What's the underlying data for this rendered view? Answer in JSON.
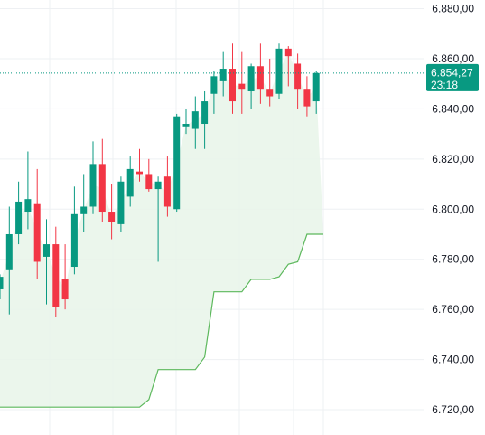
{
  "chart_data": {
    "type": "candlestick",
    "ylim": [
      6712,
      6888
    ],
    "y_ticks": [
      6880,
      6860,
      6840,
      6820,
      6800,
      6780,
      6760,
      6740,
      6720
    ],
    "y_tick_labels": [
      "6.880,00",
      "6.860,00",
      "6.840,00",
      "6.820,00",
      "6.800,00",
      "6.780,00",
      "6.760,00",
      "6.740,00",
      "6.720,00"
    ],
    "grid": true,
    "current_price": 6854.27,
    "current_price_label": "6.854,27",
    "countdown_label": "23:18",
    "colors": {
      "up": "#089981",
      "down": "#f23645",
      "stop_line": "#5cb85c",
      "fill": "#e8f5e9",
      "price_line": "#089981",
      "grid": "#eef0f3",
      "axis_text": "#131722"
    },
    "candles": [
      {
        "o": 6768,
        "h": 6774,
        "l": 6764,
        "c": 6773
      },
      {
        "o": 6776,
        "h": 6801,
        "l": 6758,
        "c": 6790
      },
      {
        "o": 6790,
        "h": 6811,
        "l": 6786,
        "c": 6803
      },
      {
        "o": 6799,
        "h": 6823,
        "l": 6792,
        "c": 6804
      },
      {
        "o": 6802,
        "h": 6816,
        "l": 6772,
        "c": 6779
      },
      {
        "o": 6781,
        "h": 6796,
        "l": 6762,
        "c": 6786
      },
      {
        "o": 6786,
        "h": 6793,
        "l": 6757,
        "c": 6761
      },
      {
        "o": 6772,
        "h": 6786,
        "l": 6760,
        "c": 6764
      },
      {
        "o": 6777,
        "h": 6809,
        "l": 6774,
        "c": 6798
      },
      {
        "o": 6798,
        "h": 6814,
        "l": 6791,
        "c": 6801
      },
      {
        "o": 6801,
        "h": 6827,
        "l": 6798,
        "c": 6818
      },
      {
        "o": 6818,
        "h": 6828,
        "l": 6795,
        "c": 6799
      },
      {
        "o": 6799,
        "h": 6810,
        "l": 6788,
        "c": 6795
      },
      {
        "o": 6794,
        "h": 6813,
        "l": 6791,
        "c": 6811
      },
      {
        "o": 6805,
        "h": 6821,
        "l": 6801,
        "c": 6816
      },
      {
        "o": 6815,
        "h": 6824,
        "l": 6811,
        "c": 6814
      },
      {
        "o": 6814,
        "h": 6820,
        "l": 6807,
        "c": 6808
      },
      {
        "o": 6808,
        "h": 6813,
        "l": 6779,
        "c": 6811
      },
      {
        "o": 6813,
        "h": 6821,
        "l": 6797,
        "c": 6801
      },
      {
        "o": 6800,
        "h": 6838,
        "l": 6799,
        "c": 6837
      },
      {
        "o": 6833,
        "h": 6840,
        "l": 6830,
        "c": 6834
      },
      {
        "o": 6832,
        "h": 6845,
        "l": 6824,
        "c": 6839
      },
      {
        "o": 6834,
        "h": 6847,
        "l": 6824,
        "c": 6843
      },
      {
        "o": 6846,
        "h": 6855,
        "l": 6838,
        "c": 6853
      },
      {
        "o": 6851,
        "h": 6863,
        "l": 6845,
        "c": 6856
      },
      {
        "o": 6856,
        "h": 6866,
        "l": 6838,
        "c": 6843
      },
      {
        "o": 6850,
        "h": 6863,
        "l": 6838,
        "c": 6848
      },
      {
        "o": 6847,
        "h": 6858,
        "l": 6840,
        "c": 6857
      },
      {
        "o": 6857,
        "h": 6866,
        "l": 6842,
        "c": 6848
      },
      {
        "o": 6848,
        "h": 6860,
        "l": 6841,
        "c": 6845
      },
      {
        "o": 6846,
        "h": 6866,
        "l": 6844,
        "c": 6864
      },
      {
        "o": 6864,
        "h": 6865,
        "l": 6849,
        "c": 6861
      },
      {
        "o": 6858,
        "h": 6862,
        "l": 6840,
        "c": 6848
      },
      {
        "o": 6848,
        "h": 6853,
        "l": 6837,
        "c": 6841
      },
      {
        "o": 6843,
        "h": 6855,
        "l": 6838,
        "c": 6854.27
      }
    ],
    "stop_line": [
      6721,
      6721,
      6721,
      6721,
      6721,
      6721,
      6721,
      6721,
      6721,
      6721,
      6721,
      6721,
      6721,
      6721,
      6721,
      6721,
      6724,
      6736,
      6736,
      6736,
      6736,
      6736,
      6741,
      6767,
      6767,
      6767,
      6767,
      6772,
      6772,
      6772,
      6773,
      6778,
      6779,
      6790,
      6790,
      6790,
      6790
    ]
  }
}
